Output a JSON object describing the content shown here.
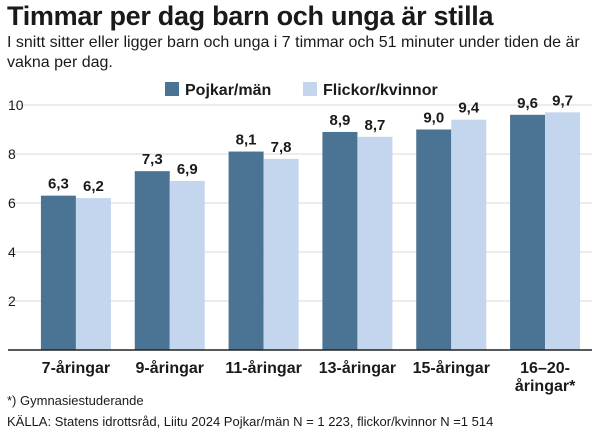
{
  "title": "Timmar per dag barn och unga är stilla",
  "subtitle": "I snitt sitter eller ligger barn och unga i 7 timmar och 51 minuter under tiden de är vakna per dag.",
  "footnote": "*) Gymnasiestuderande",
  "source": "KÄLLA: Statens idrottsråd, Liitu 2024 Pojkar/män N = 1 223, flickor/kvinnor N =1 514",
  "colors": {
    "series1": "#4a7394",
    "series2": "#c3d6ee",
    "grid": "#d9d9d9",
    "axis": "#222222",
    "text": "#1a1a1a"
  },
  "chart_data": {
    "type": "bar",
    "categories": [
      "7-åringar",
      "9-åringar",
      "11-åringar",
      "13-åringar",
      "15-åringar",
      "16–20-åringar*"
    ],
    "series": [
      {
        "name": "Pojkar/män",
        "values": [
          6.3,
          7.3,
          8.1,
          8.9,
          9.0,
          9.6
        ],
        "labels": [
          "6,3",
          "7,3",
          "8,1",
          "8,9",
          "9,0",
          "9,6"
        ]
      },
      {
        "name": "Flickor/kvinnor",
        "values": [
          6.2,
          6.9,
          7.8,
          8.7,
          9.4,
          9.7
        ],
        "labels": [
          "6,2",
          "6,9",
          "7,8",
          "8,7",
          "9,4",
          "9,7"
        ]
      }
    ],
    "yticks": [
      2,
      4,
      6,
      8,
      10
    ],
    "ylim": [
      0,
      10
    ],
    "grid": true,
    "legend": "top-center",
    "xlabel": "",
    "ylabel": ""
  }
}
